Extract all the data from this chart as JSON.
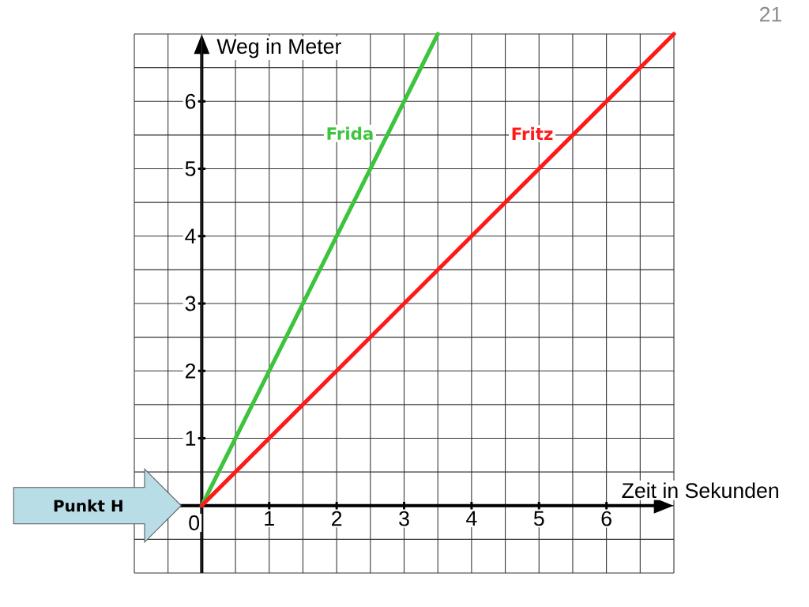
{
  "chart_data": {
    "type": "line",
    "xlabel": "Zeit in Sekunden",
    "ylabel": "Weg in Meter",
    "series": [
      {
        "name": "Frida",
        "color": "#3cc43c",
        "x": [
          0,
          3.5
        ],
        "values": [
          0,
          7
        ]
      },
      {
        "name": "Fritz",
        "color": "#ff1a1a",
        "x": [
          0,
          7
        ],
        "values": [
          0,
          7
        ]
      }
    ],
    "xlim": [
      -1,
      7
    ],
    "ylim": [
      -1,
      7
    ],
    "xticks": [
      {
        "value": -1,
        "label": null
      },
      {
        "value": -0.5,
        "label": null
      },
      0,
      {
        "value": 0.5,
        "label": null
      },
      1,
      {
        "value": 1.5,
        "label": null
      },
      2,
      {
        "value": 2.5,
        "label": null
      },
      3,
      {
        "value": 3.5,
        "label": null
      },
      4,
      {
        "value": 4.5,
        "label": null
      },
      5,
      {
        "value": 5.5,
        "label": null
      },
      6,
      {
        "value": 6.5,
        "label": null
      },
      {
        "value": 7,
        "label": null
      }
    ],
    "yticks": [
      {
        "value": -1,
        "label": null
      },
      {
        "value": -0.5,
        "label": null
      },
      {
        "value": 0,
        "label": null
      },
      {
        "value": 0.5,
        "label": null
      },
      1,
      {
        "value": 1.5,
        "label": null
      },
      2,
      {
        "value": 2.5,
        "label": null
      },
      3,
      {
        "value": 3.5,
        "label": null
      },
      4,
      {
        "value": 4.5,
        "label": null
      },
      5,
      {
        "value": 5.5,
        "label": null
      },
      6,
      {
        "value": 6.5,
        "label": null
      },
      {
        "value": 7,
        "label": null
      }
    ],
    "grid": true,
    "annotations": [
      "Punkt H",
      "21"
    ]
  }
}
